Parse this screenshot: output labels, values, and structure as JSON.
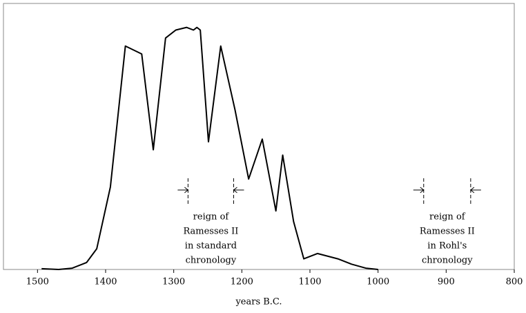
{
  "chart_data": {
    "type": "line",
    "x_label": "years B.C.",
    "x": [
      1494,
      1469,
      1449,
      1428,
      1413,
      1393,
      1371,
      1347,
      1330,
      1312,
      1297,
      1281,
      1271,
      1266,
      1261,
      1249,
      1231,
      1210,
      1190,
      1170,
      1150,
      1140,
      1124,
      1109,
      1089,
      1059,
      1039,
      1018,
      1000
    ],
    "series": [
      {
        "color": "#000000",
        "values": [
          0.3,
          0,
          0.5,
          2.6,
          7.8,
          31,
          84,
          81,
          45,
          87,
          90,
          91,
          90,
          91,
          90,
          48,
          84,
          60,
          34,
          49,
          22,
          43,
          18,
          4,
          6,
          4,
          2,
          0.5,
          0
        ]
      }
    ],
    "xlim": [
      1550,
      800
    ],
    "ylim": [
      0,
      100
    ],
    "xticks": [
      1500,
      1400,
      1300,
      1200,
      1100,
      1000,
      900,
      800
    ],
    "annotations": [
      {
        "lines": [
          "reign of",
          "Ramesses II",
          "in standard",
          "chronology"
        ],
        "x": [
          1279,
          1212
        ]
      },
      {
        "lines": [
          "reign of",
          "Ramesses II",
          "in Rohl's",
          "chronology"
        ],
        "x": [
          933,
          864
        ]
      }
    ]
  }
}
